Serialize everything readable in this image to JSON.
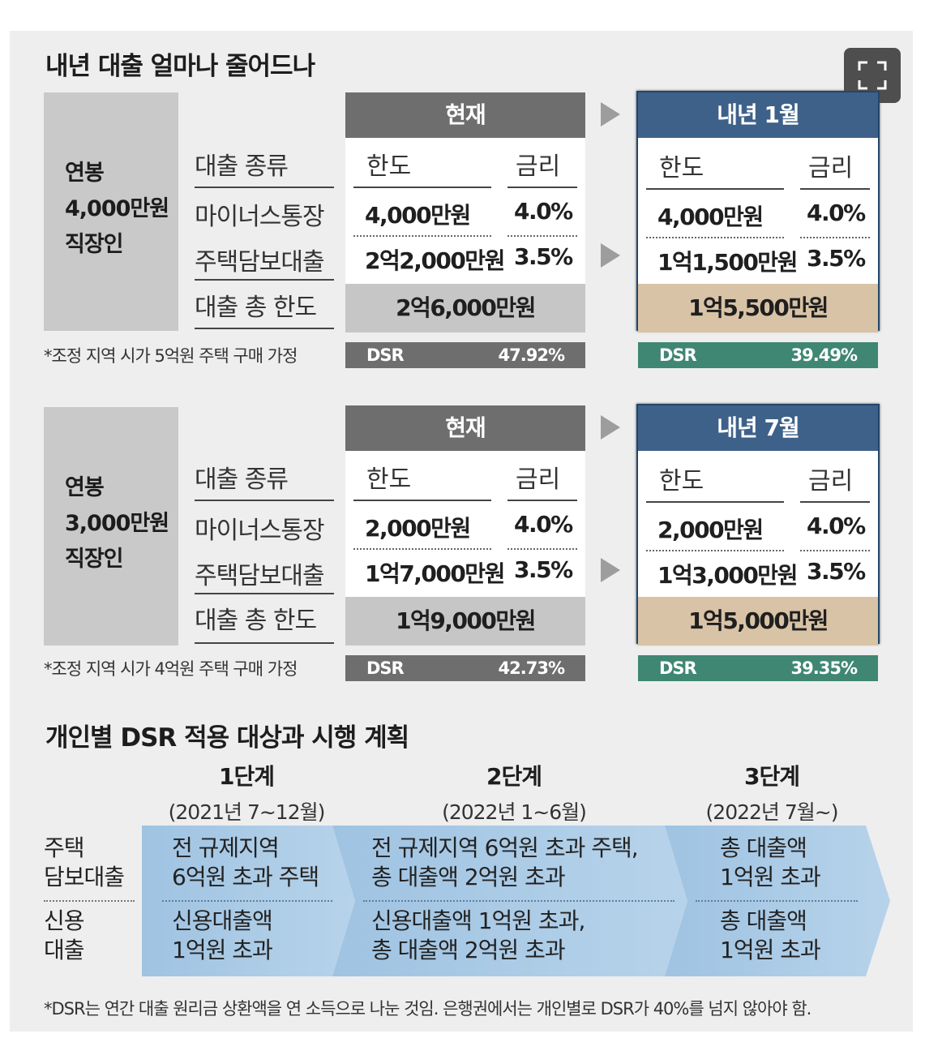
{
  "colors": {
    "current": "#6e6e6e",
    "next": "#3e6189",
    "dsr_current": "#6e6e6e",
    "dsr_next": "#3f8772",
    "next_total": "#d9c3a6"
  },
  "expand_icon": "fullscreen-corners-icon",
  "title1": "내년 대출 얼마나 줄어드나",
  "sections": [
    {
      "person": [
        "연봉",
        "4,000만원",
        "직장인"
      ],
      "rows": [
        "대출 종류",
        "마이너스통장",
        "주택담보대출",
        "대출 총 한도"
      ],
      "note": "*조정 지역 시가 5억원 주택 구매 가정",
      "current": {
        "header": "현재",
        "col_limit": "한도",
        "col_rate": "금리",
        "minus_limit": "4,000만원",
        "minus_rate": "4.0%",
        "mortgage_limit": "2억2,000만원",
        "mortgage_rate": "3.5%",
        "total": "2억6,000만원",
        "dsr_label": "DSR",
        "dsr": "47.92%"
      },
      "next": {
        "header": "내년 1월",
        "col_limit": "한도",
        "col_rate": "금리",
        "minus_limit": "4,000만원",
        "minus_rate": "4.0%",
        "mortgage_limit": "1억1,500만원",
        "mortgage_rate": "3.5%",
        "total": "1억5,500만원",
        "dsr_label": "DSR",
        "dsr": "39.49%"
      }
    },
    {
      "person": [
        "연봉",
        "3,000만원",
        "직장인"
      ],
      "rows": [
        "대출 종류",
        "마이너스통장",
        "주택담보대출",
        "대출 총 한도"
      ],
      "note": "*조정 지역 시가 4억원 주택 구매 가정",
      "current": {
        "header": "현재",
        "col_limit": "한도",
        "col_rate": "금리",
        "minus_limit": "2,000만원",
        "minus_rate": "4.0%",
        "mortgage_limit": "1억7,000만원",
        "mortgage_rate": "3.5%",
        "total": "1억9,000만원",
        "dsr_label": "DSR",
        "dsr": "42.73%"
      },
      "next": {
        "header": "내년 7월",
        "col_limit": "한도",
        "col_rate": "금리",
        "minus_limit": "2,000만원",
        "minus_rate": "4.0%",
        "mortgage_limit": "1억3,000만원",
        "mortgage_rate": "3.5%",
        "total": "1억5,000만원",
        "dsr_label": "DSR",
        "dsr": "39.35%"
      }
    }
  ],
  "title2": "개인별 DSR 적용 대상과 시행 계획",
  "stages": [
    {
      "name": "1단계",
      "period": "(2021년 7~12월)"
    },
    {
      "name": "2단계",
      "period": "(2022년 1~6월)"
    },
    {
      "name": "3단계",
      "period": "(2022년 7월~)"
    }
  ],
  "row_labels": {
    "mortgage": [
      "주택",
      "담보대출"
    ],
    "credit": [
      "신용",
      "대출"
    ]
  },
  "cells": {
    "mortgage": [
      [
        "전 규제지역",
        "6억원 초과 주택"
      ],
      [
        "전 규제지역 6억원 초과 주택,",
        "총 대출액 2억원 초과"
      ],
      [
        "총 대출액",
        "1억원 초과"
      ]
    ],
    "credit": [
      [
        "신용대출액",
        "1억원 초과"
      ],
      [
        "신용대출액 1억원 초과,",
        "총 대출액 2억원 초과"
      ],
      [
        "총 대출액",
        "1억원 초과"
      ]
    ]
  },
  "footnote": "*DSR는 연간 대출 원리금 상환액을 연 소득으로 나눈 것임. 은행권에서는 개인별로 DSR가 40%를 넘지 않아야 함."
}
